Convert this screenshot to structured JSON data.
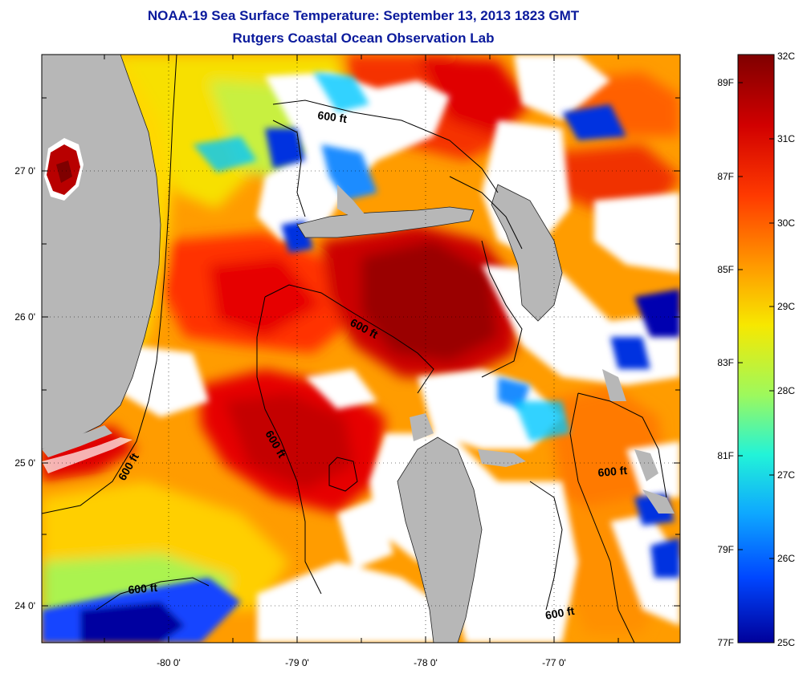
{
  "title": "NOAA-19 Sea Surface Temperature:  September 13, 2013 1823 GMT",
  "subtitle": "Rutgers Coastal Ocean Observation Lab",
  "x_ticks": [
    "-80 0'",
    "-79 0'",
    "-78 0'",
    "-77 0'"
  ],
  "y_ticks": [
    "27 0'",
    "26 0'",
    "25 0'",
    "24 0'"
  ],
  "contour_label": "600 ft",
  "colorbar": {
    "celsius": [
      "32C",
      "31C",
      "30C",
      "29C",
      "28C",
      "27C",
      "26C",
      "25C"
    ],
    "fahrenheit": [
      "89F",
      "87F",
      "85F",
      "83F",
      "81F",
      "79F",
      "77F"
    ],
    "colors": [
      "#7f0000",
      "#d10000",
      "#ff3a00",
      "#ff9a00",
      "#f7e800",
      "#9cf95e",
      "#22f3d8",
      "#0ea8ff",
      "#0046ff",
      "#00009a"
    ]
  },
  "colors": {
    "land": "#b7b7b7",
    "cloud": "#ffffff",
    "title": "#0a1a9c"
  }
}
